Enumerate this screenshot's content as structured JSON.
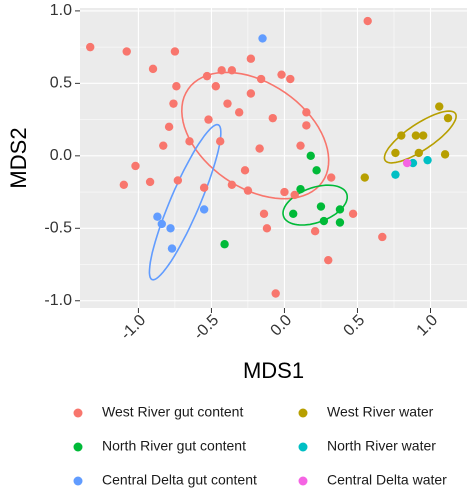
{
  "chart_data": {
    "type": "scatter",
    "xlabel": "MDS1",
    "ylabel": "MDS2",
    "xlim": [
      -1.4,
      1.25
    ],
    "ylim": [
      -1.05,
      1.02
    ],
    "x_ticks": [
      -1.0,
      -0.5,
      0.0,
      0.5,
      1.0
    ],
    "x_tick_labels": [
      "-1.0",
      "-0.5",
      "0.0",
      "0.5",
      "1.0"
    ],
    "y_ticks": [
      -1.0,
      -0.5,
      0.0,
      0.5,
      1.0
    ],
    "y_tick_labels": [
      "-1.0",
      "-0.5",
      "0.0",
      "0.5",
      "1.0"
    ],
    "grid": true,
    "panel_background": "#ebebeb",
    "legend_position": "bottom",
    "series": [
      {
        "name": "West River gut content",
        "color": "#F8766D",
        "points": [
          [
            -1.33,
            0.75
          ],
          [
            -1.08,
            0.72
          ],
          [
            -0.75,
            0.72
          ],
          [
            -0.23,
            0.67
          ],
          [
            0.57,
            0.93
          ],
          [
            -0.9,
            0.6
          ],
          [
            -0.43,
            0.59
          ],
          [
            -0.36,
            0.59
          ],
          [
            -0.53,
            0.55
          ],
          [
            -0.02,
            0.56
          ],
          [
            -0.74,
            0.48
          ],
          [
            -0.47,
            0.48
          ],
          [
            -0.16,
            0.53
          ],
          [
            0.04,
            0.53
          ],
          [
            -0.23,
            0.43
          ],
          [
            -0.76,
            0.36
          ],
          [
            -0.39,
            0.36
          ],
          [
            -0.31,
            0.3
          ],
          [
            -0.08,
            0.26
          ],
          [
            0.15,
            0.3
          ],
          [
            -0.52,
            0.25
          ],
          [
            0.15,
            0.21
          ],
          [
            -0.79,
            0.2
          ],
          [
            -0.65,
            0.1
          ],
          [
            -0.44,
            0.1
          ],
          [
            0.11,
            0.07
          ],
          [
            -0.83,
            0.07
          ],
          [
            -0.17,
            0.05
          ],
          [
            -1.02,
            -0.07
          ],
          [
            -0.27,
            -0.1
          ],
          [
            -0.73,
            -0.17
          ],
          [
            -0.36,
            -0.2
          ],
          [
            -0.92,
            -0.18
          ],
          [
            0.32,
            -0.15
          ],
          [
            -1.1,
            -0.2
          ],
          [
            -0.55,
            -0.22
          ],
          [
            -0.25,
            -0.24
          ],
          [
            0.0,
            -0.25
          ],
          [
            0.07,
            -0.27
          ],
          [
            0.47,
            -0.4
          ],
          [
            -0.14,
            -0.4
          ],
          [
            0.67,
            -0.56
          ],
          [
            -0.12,
            -0.5
          ],
          [
            0.3,
            -0.72
          ],
          [
            -0.06,
            -0.95
          ],
          [
            0.21,
            -0.52
          ]
        ],
        "ellipse": {
          "center": [
            -0.2,
            0.14
          ],
          "radii": [
            0.56,
            0.36
          ],
          "angle_deg": -35
        }
      },
      {
        "name": "North River gut content",
        "color": "#00BA38",
        "points": [
          [
            0.18,
            0.0
          ],
          [
            0.22,
            -0.1
          ],
          [
            0.11,
            -0.23
          ],
          [
            0.25,
            -0.35
          ],
          [
            0.06,
            -0.4
          ],
          [
            0.38,
            -0.37
          ],
          [
            0.27,
            -0.45
          ],
          [
            0.38,
            -0.46
          ],
          [
            -0.41,
            -0.61
          ]
        ],
        "ellipse": {
          "center": [
            0.21,
            -0.34
          ],
          "radii": [
            0.23,
            0.12
          ],
          "angle_deg": 20
        }
      },
      {
        "name": "Central Delta gut content",
        "color": "#619CFF",
        "points": [
          [
            -0.15,
            0.81
          ],
          [
            -0.55,
            -0.37
          ],
          [
            -0.87,
            -0.42
          ],
          [
            -0.78,
            -0.5
          ],
          [
            -0.84,
            -0.47
          ],
          [
            -0.77,
            -0.64
          ]
        ],
        "ellipse": {
          "center": [
            -0.68,
            -0.32
          ],
          "radii": [
            0.58,
            0.1
          ],
          "angle_deg": 67
        }
      },
      {
        "name": "West River water",
        "color": "#B79F00",
        "points": [
          [
            1.06,
            0.34
          ],
          [
            1.12,
            0.26
          ],
          [
            0.9,
            0.14
          ],
          [
            0.95,
            0.14
          ],
          [
            0.8,
            0.14
          ],
          [
            0.76,
            0.02
          ],
          [
            0.92,
            0.02
          ],
          [
            1.1,
            0.01
          ],
          [
            0.55,
            -0.15
          ]
        ],
        "ellipse": {
          "center": [
            0.93,
            0.13
          ],
          "radii": [
            0.29,
            0.09
          ],
          "angle_deg": 34
        }
      },
      {
        "name": "North River water",
        "color": "#00BFC4",
        "points": [
          [
            0.76,
            -0.13
          ],
          [
            0.88,
            -0.05
          ],
          [
            0.98,
            -0.03
          ]
        ]
      },
      {
        "name": "Central Delta water",
        "color": "#F564E3",
        "points": [
          [
            0.84,
            -0.05
          ]
        ]
      }
    ]
  }
}
